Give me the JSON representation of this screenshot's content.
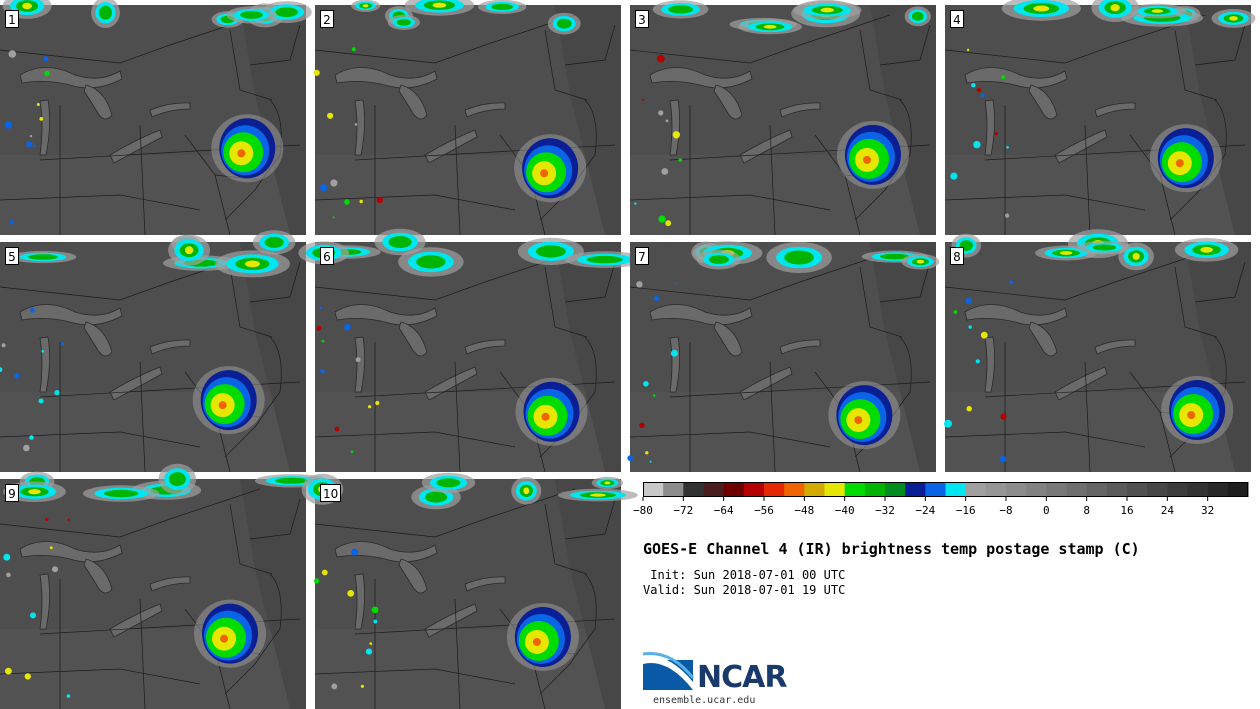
{
  "stamps": [
    "1",
    "2",
    "3",
    "4",
    "5",
    "6",
    "7",
    "8",
    "9",
    "10"
  ],
  "colorbar": {
    "colors": [
      "#c8c8c8",
      "#8c8c8c",
      "#323232",
      "#4b1e1e",
      "#6e0000",
      "#b40000",
      "#e62800",
      "#f06400",
      "#d2aa00",
      "#e6e600",
      "#00dc00",
      "#00b400",
      "#008c1e",
      "#0a1e96",
      "#0a64e6",
      "#00e6f0",
      "#a0a0a0",
      "#969696",
      "#8c8c8c",
      "#828282",
      "#787878",
      "#6e6e6e",
      "#646464",
      "#5a5a5a",
      "#505050",
      "#464646",
      "#3c3c3c",
      "#323232",
      "#282828",
      "#1e1e1e"
    ],
    "ticks": [
      "−80",
      "−72",
      "−64",
      "−56",
      "−48",
      "−40",
      "−32",
      "−24",
      "−16",
      "−8",
      "0",
      "8",
      "16",
      "24",
      "32"
    ]
  },
  "title": "GOES-E Channel 4 (IR) brightness temp postage stamp (C)",
  "init": " Init: Sun 2018-07-01 00 UTC",
  "valid": "Valid: Sun 2018-07-01 19 UTC",
  "logo": "NCAR",
  "site": "ensemble.ucar.edu"
}
